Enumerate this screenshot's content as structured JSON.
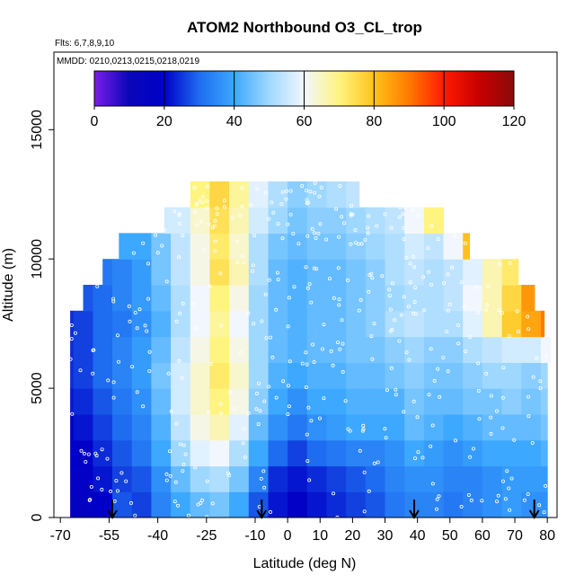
{
  "chart_data": {
    "type": "heatmap",
    "title": "ATOM2 Northbound O3_CL_trop",
    "flights_note": "Flts: 6,7,8,9,10",
    "date_note": "MMDD: 0210,0213,0215,0218,0219",
    "xlabel": "Latitude (deg N)",
    "ylabel": "Altitude (m)",
    "xlim": [
      -72,
      83
    ],
    "ylim": [
      0,
      18000
    ],
    "xticks": [
      -70,
      -55,
      -40,
      -25,
      -10,
      0,
      10,
      20,
      30,
      40,
      50,
      60,
      70,
      80
    ],
    "yticks": [
      0,
      5000,
      10000,
      15000
    ],
    "colorbar": {
      "min": 0,
      "max": 120,
      "ticks": [
        0,
        20,
        40,
        60,
        80,
        100,
        120
      ],
      "colors": [
        "#7a1ee8",
        "#0a06b8",
        "#0000c8",
        "#1e6cf0",
        "#3ca8ff",
        "#9fd8ff",
        "#f2f7ff",
        "#fff480",
        "#ffc21a",
        "#ff7a00",
        "#ff1a00",
        "#c80000",
        "#8a0a0a"
      ]
    },
    "altitude_bins_m": [
      0,
      1000,
      2000,
      3000,
      4000,
      5000,
      6000,
      7000,
      8000,
      9000,
      10000,
      11000,
      12000
    ],
    "latitude_bins": [
      -72,
      -66,
      -60,
      -54,
      -48,
      -42,
      -36,
      -30,
      -24,
      -18,
      -12,
      -6,
      0,
      6,
      12,
      18,
      24,
      30,
      36,
      42,
      48,
      54,
      60,
      66,
      72,
      78
    ],
    "latitude_coverage_by_altitude": [
      [
        -67,
        80
      ],
      [
        -67,
        80
      ],
      [
        -67,
        80
      ],
      [
        -67,
        80
      ],
      [
        -67,
        80
      ],
      [
        -67,
        80
      ],
      [
        -67,
        81
      ],
      [
        -67,
        79
      ],
      [
        -63,
        76
      ],
      [
        -57,
        71
      ],
      [
        -52,
        56
      ],
      [
        -38,
        48
      ],
      [
        -30,
        22
      ]
    ],
    "ozone_ppbv": [
      [
        16,
        16,
        20,
        28,
        26,
        34,
        40,
        44,
        46,
        40,
        28,
        22,
        18,
        22,
        24,
        26,
        28,
        32,
        34,
        34,
        32,
        34,
        36,
        38,
        36,
        36
      ],
      [
        18,
        18,
        22,
        26,
        28,
        36,
        44,
        50,
        52,
        46,
        34,
        24,
        22,
        24,
        26,
        28,
        30,
        34,
        36,
        36,
        34,
        34,
        36,
        38,
        38,
        38
      ],
      [
        20,
        20,
        24,
        28,
        32,
        40,
        50,
        58,
        60,
        52,
        40,
        30,
        26,
        30,
        32,
        34,
        34,
        36,
        40,
        38,
        36,
        38,
        40,
        40,
        40,
        42
      ],
      [
        20,
        22,
        26,
        30,
        34,
        42,
        54,
        62,
        66,
        58,
        44,
        36,
        32,
        36,
        38,
        40,
        40,
        40,
        44,
        42,
        40,
        42,
        44,
        44,
        44,
        46
      ],
      [
        22,
        24,
        28,
        32,
        36,
        44,
        56,
        64,
        70,
        62,
        48,
        40,
        36,
        40,
        40,
        42,
        42,
        42,
        46,
        44,
        44,
        46,
        46,
        48,
        46,
        48
      ],
      [
        24,
        26,
        30,
        34,
        38,
        46,
        56,
        64,
        72,
        64,
        50,
        42,
        40,
        42,
        42,
        44,
        44,
        46,
        48,
        46,
        46,
        48,
        50,
        50,
        48,
        50
      ],
      [
        24,
        26,
        30,
        34,
        38,
        44,
        54,
        62,
        70,
        62,
        50,
        44,
        42,
        44,
        44,
        46,
        46,
        48,
        50,
        48,
        48,
        52,
        54,
        56,
        56,
        60
      ],
      [
        24,
        26,
        30,
        32,
        36,
        42,
        52,
        60,
        68,
        60,
        50,
        44,
        42,
        44,
        44,
        46,
        48,
        52,
        54,
        52,
        52,
        58,
        66,
        78,
        84,
        90
      ],
      [
        28,
        28,
        30,
        34,
        38,
        44,
        52,
        60,
        70,
        62,
        50,
        44,
        42,
        44,
        44,
        46,
        48,
        50,
        52,
        52,
        54,
        60,
        66,
        76,
        86,
        90
      ],
      [
        60,
        40,
        32,
        34,
        38,
        46,
        54,
        62,
        74,
        66,
        52,
        44,
        42,
        44,
        44,
        46,
        48,
        52,
        54,
        52,
        54,
        58,
        66,
        72,
        80,
        84
      ],
      [
        80,
        70,
        56,
        40,
        40,
        46,
        54,
        62,
        72,
        64,
        52,
        46,
        44,
        46,
        46,
        48,
        50,
        52,
        56,
        54,
        60,
        80,
        100,
        110,
        110,
        110
      ],
      [
        80,
        80,
        80,
        90,
        70,
        56,
        56,
        64,
        74,
        66,
        56,
        50,
        46,
        48,
        48,
        50,
        52,
        54,
        60,
        70,
        90,
        100,
        110,
        110,
        110,
        110
      ],
      [
        80,
        80,
        80,
        80,
        88,
        96,
        74,
        70,
        76,
        68,
        58,
        52,
        48,
        50,
        52,
        54,
        56,
        60,
        66,
        70,
        76,
        80,
        80,
        80,
        80,
        80
      ]
    ],
    "arrows_latitude": [
      -54,
      -8,
      39,
      76
    ]
  }
}
